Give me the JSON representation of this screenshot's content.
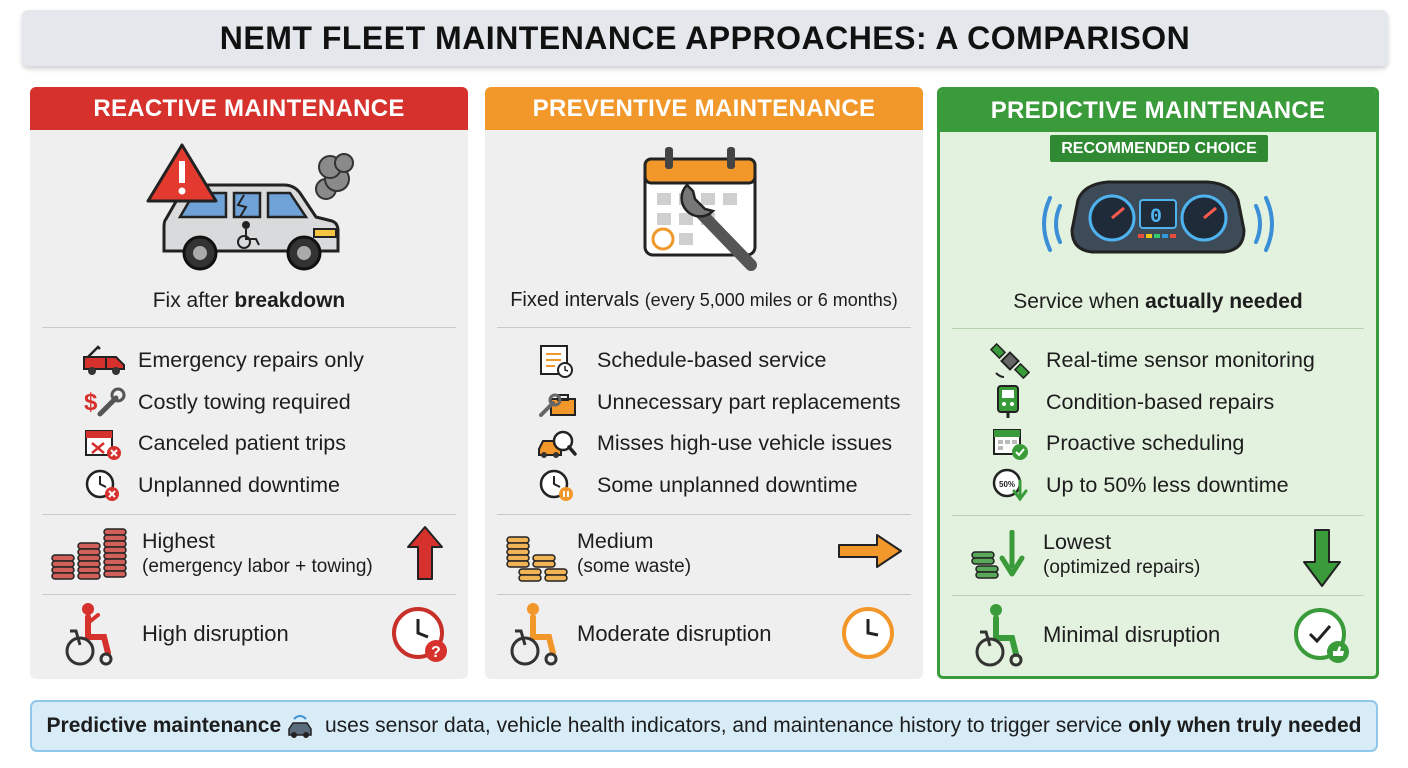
{
  "title": "NEMT FLEET MAINTENANCE APPROACHES: A COMPARISON",
  "columns": [
    {
      "header": "REACTIVE MAINTENANCE",
      "tagline_pre": "Fix after ",
      "tagline_bold": "breakdown",
      "features": [
        {
          "text": "Emergency repairs only",
          "icon": "tow-truck-icon"
        },
        {
          "text": "Costly towing required",
          "icon": "dollar-wrench-icon"
        },
        {
          "text": "Canceled patient trips",
          "icon": "canceled-calendar-icon"
        },
        {
          "text": "Unplanned downtime",
          "icon": "clock-x-icon"
        }
      ],
      "cost_label": "Highest",
      "cost_sub": "(emergency labor + towing)",
      "cost_trend": "up",
      "disruption": "High disruption"
    },
    {
      "header": "PREVENTIVE MAINTENANCE",
      "tagline_pre": "Fixed intervals ",
      "tagline_small": "(every 5,000 miles or 6 months)",
      "features": [
        {
          "text": "Schedule-based service",
          "icon": "schedule-icon"
        },
        {
          "text": "Unnecessary part replacements",
          "icon": "toolbox-icon"
        },
        {
          "text": "Misses high-use vehicle issues",
          "icon": "car-magnifier-icon"
        },
        {
          "text": "Some unplanned downtime",
          "icon": "clock-pause-icon"
        }
      ],
      "cost_label": "Medium",
      "cost_sub": "(some waste)",
      "cost_trend": "flat",
      "disruption": "Moderate disruption"
    },
    {
      "header": "PREDICTIVE MAINTENANCE",
      "badge": "RECOMMENDED CHOICE",
      "tagline_pre": "Service when ",
      "tagline_bold": "actually needed",
      "features": [
        {
          "text": "Real-time sensor monitoring",
          "icon": "satellite-icon"
        },
        {
          "text": "Condition-based repairs",
          "icon": "obd-scanner-icon"
        },
        {
          "text": "Proactive scheduling",
          "icon": "calendar-check-icon"
        },
        {
          "text": "Up to 50% less downtime",
          "icon": "clock-down-icon"
        }
      ],
      "cost_label": "Lowest",
      "cost_sub": "(optimized repairs)",
      "cost_trend": "down",
      "disruption": "Minimal disruption"
    }
  ],
  "footer": {
    "bold_start": "Predictive maintenance",
    "middle": " uses sensor data, vehicle health indicators, and maintenance history to trigger service ",
    "bold_end": "only when truly needed"
  },
  "colors": {
    "reactive": "#d6312c",
    "preventive": "#f2972a",
    "predictive": "#3a9b3a"
  },
  "icon_text": {
    "gauge_readout": "0",
    "percent_label": "50%"
  }
}
